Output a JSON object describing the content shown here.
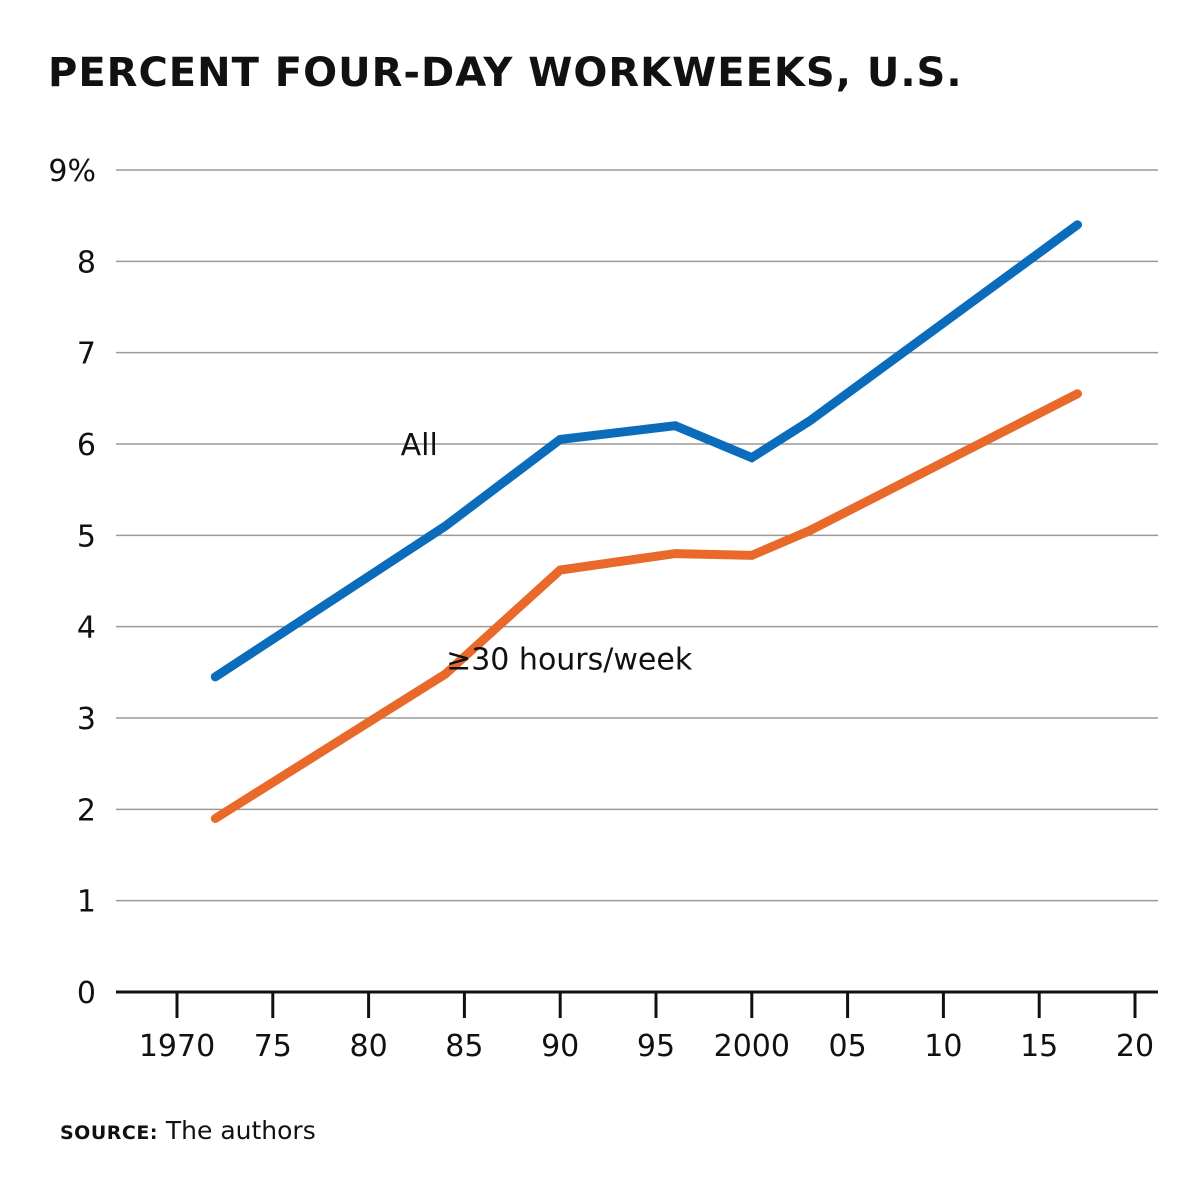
{
  "chart_data": {
    "type": "line",
    "title": "PERCENT FOUR-DAY WORKWEEKS, U.S.",
    "xlim": [
      1967,
      2021
    ],
    "ylim": [
      0,
      9
    ],
    "grid": true,
    "x_tick_values": [
      1970,
      1975,
      1980,
      1985,
      1990,
      1995,
      2000,
      2005,
      2010,
      2015,
      2020
    ],
    "x_tick_labels": [
      "1970",
      "75",
      "80",
      "85",
      "90",
      "95",
      "2000",
      "05",
      "10",
      "15",
      "20"
    ],
    "y_tick_values": [
      0,
      1,
      2,
      3,
      4,
      5,
      6,
      7,
      8,
      9
    ],
    "y_tick_labels": [
      "0",
      "1",
      "2",
      "3",
      "4",
      "5",
      "6",
      "7",
      "8",
      "9%"
    ],
    "series": [
      {
        "name": "All",
        "color": "#0a6cba",
        "x": [
          1972,
          1984,
          1990,
          1996,
          2000,
          2003,
          2017
        ],
        "y": [
          3.45,
          5.1,
          6.05,
          6.2,
          5.85,
          6.25,
          8.4
        ]
      },
      {
        "name": "≥30 hours/week",
        "color": "#e8692a",
        "x": [
          1972,
          1984,
          1990,
          1996,
          2000,
          2003,
          2017
        ],
        "y": [
          1.9,
          3.48,
          4.62,
          4.8,
          4.78,
          5.05,
          6.55
        ]
      }
    ]
  },
  "source": {
    "label": "SOURCE:",
    "text": "The authors"
  }
}
